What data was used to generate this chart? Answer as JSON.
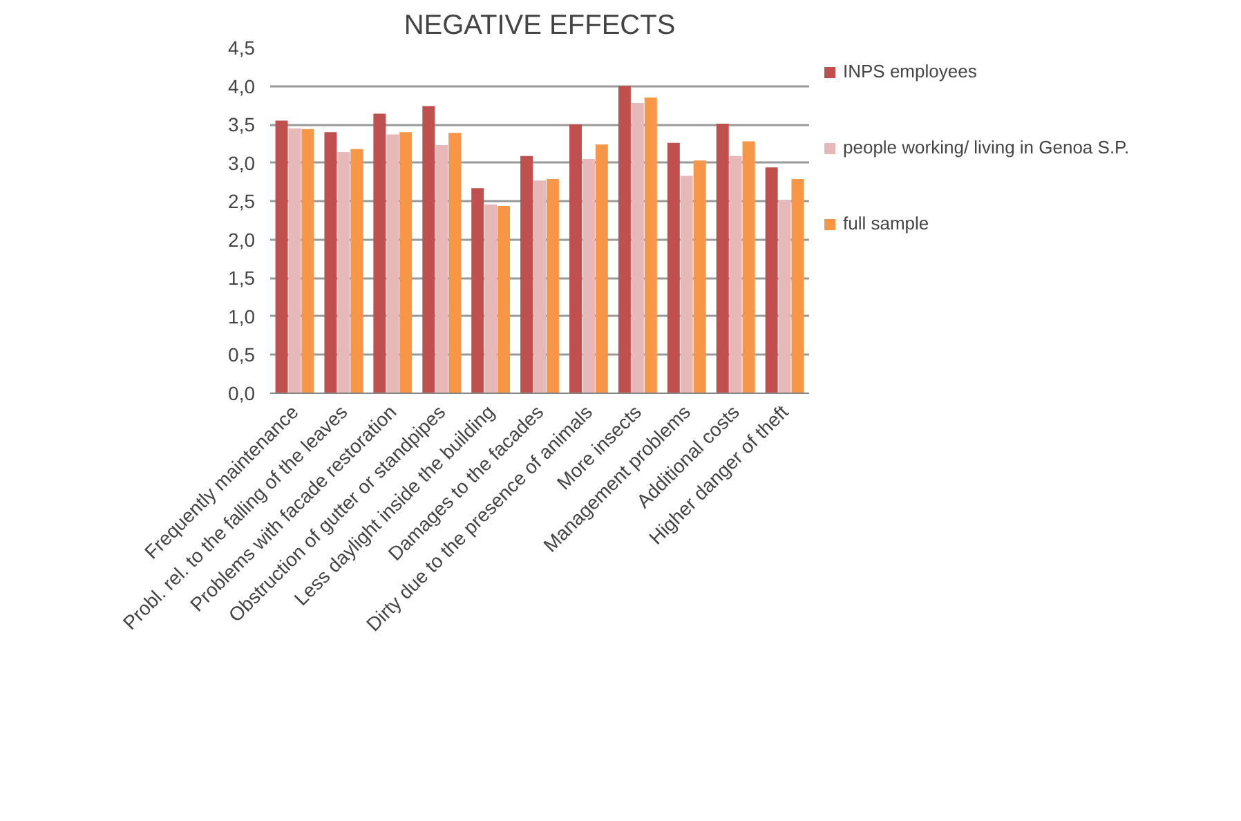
{
  "chart_data": {
    "type": "bar",
    "title": "NEGATIVE EFFECTS",
    "categories": [
      "Frequently maintenance",
      "Probl. rel. to the falling of the leaves",
      "Problems with facade restoration",
      "Obstruction of gutter or standpipes",
      "Less daylight inside the building",
      "Damages to the facades",
      "Dirty due to the presence of animals",
      "More insects",
      "Management problems",
      "Additional costs",
      "Higher danger of theft"
    ],
    "series": [
      {
        "name": "INPS employees",
        "color": "#c0504d",
        "values": [
          3.55,
          3.4,
          3.64,
          3.74,
          2.67,
          3.09,
          3.5,
          4.0,
          3.26,
          3.51,
          2.94
        ]
      },
      {
        "name": "people working/ living in Genoa S.P.",
        "color": "#e6b9b8",
        "values": [
          3.45,
          3.14,
          3.37,
          3.23,
          2.46,
          2.77,
          3.05,
          3.78,
          2.83,
          3.09,
          2.51
        ]
      },
      {
        "name": "full sample",
        "color": "#f79646",
        "values": [
          3.44,
          3.18,
          3.4,
          3.39,
          2.44,
          2.79,
          3.24,
          3.85,
          3.03,
          3.28,
          2.79
        ]
      }
    ],
    "ylim": [
      0,
      4.5
    ],
    "yticks": [
      {
        "value": 0,
        "label": "0,0"
      },
      {
        "value": 0.5,
        "label": "0,5"
      },
      {
        "value": 1,
        "label": "1,0"
      },
      {
        "value": 1.5,
        "label": "1,5"
      },
      {
        "value": 2,
        "label": "2,0"
      },
      {
        "value": 2.5,
        "label": "2,5"
      },
      {
        "value": 3,
        "label": "3,0"
      },
      {
        "value": 3.5,
        "label": "3,5"
      },
      {
        "value": 4,
        "label": "4,0"
      },
      {
        "value": 4.5,
        "label": "4,5"
      }
    ],
    "grid": "y",
    "legend": "right"
  }
}
